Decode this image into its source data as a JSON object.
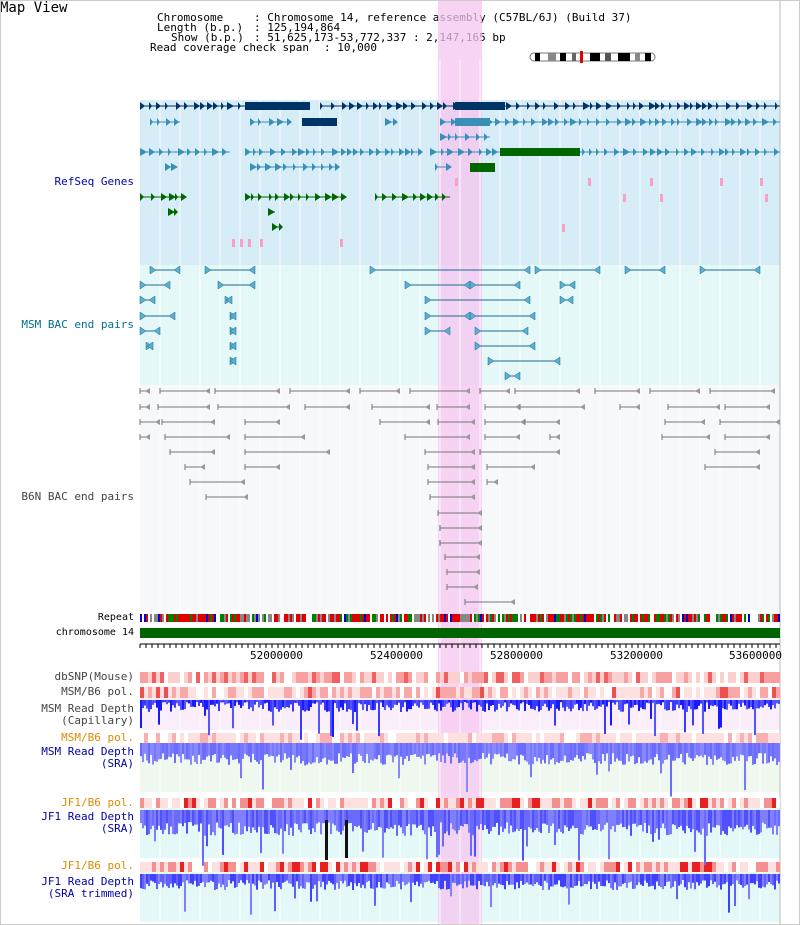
{
  "title": "Map View",
  "header": {
    "chromosome_label": "Chromosome",
    "chromosome_value": ": Chromosome 14, reference assembly (C57BL/6J) (Build 37)",
    "length_label": "Length (b.p.)",
    "length_value": ": 125,194,864",
    "show_label": "Show (b.p.)",
    "show_value": ": 51,625,173-53,772,337 : 2,147,165 bp",
    "coverage_label": "Read coverage check span",
    "coverage_value": ": 10,000"
  },
  "tracks": {
    "refseq": "RefSeq Genes",
    "msm_bac": "MSM BAC end pairs",
    "b6n_bac": "B6N BAC end pairs",
    "repeat": "Repeat",
    "chromosome": "chromosome 14",
    "dbsnp": "dbSNP(Mouse)",
    "msm_b6_pol_1": "MSM/B6 pol.",
    "msm_rd_cap_1": "MSM Read Depth",
    "msm_rd_cap_2": "(Capillary)",
    "msm_b6_pol_2": "MSM/B6 pol.",
    "msm_rd_sra_1": "MSM Read Depth",
    "msm_rd_sra_2": "(SRA)",
    "jf1_b6_pol_1": "JF1/B6 pol.",
    "jf1_rd_sra_1": "JF1 Read Depth",
    "jf1_rd_sra_2": "(SRA)",
    "jf1_b6_pol_2": "JF1/B6 pol.",
    "jf1_rd_trim_1": "JF1 Read Depth",
    "jf1_rd_trim_2": "(SRA trimmed)"
  },
  "axis_ticks": [
    "52000000",
    "52400000",
    "52800000",
    "53200000",
    "53600000"
  ],
  "colors": {
    "refseq_dark": "#003366",
    "refseq_light": "#3a8fb7",
    "refseq_green": "#006600",
    "highlight": "#f5c6f0",
    "track_bg_blue": "#d6ecf7",
    "track_bg_cyan": "#e4f8f8",
    "chromosome_bar": "#006400"
  }
}
